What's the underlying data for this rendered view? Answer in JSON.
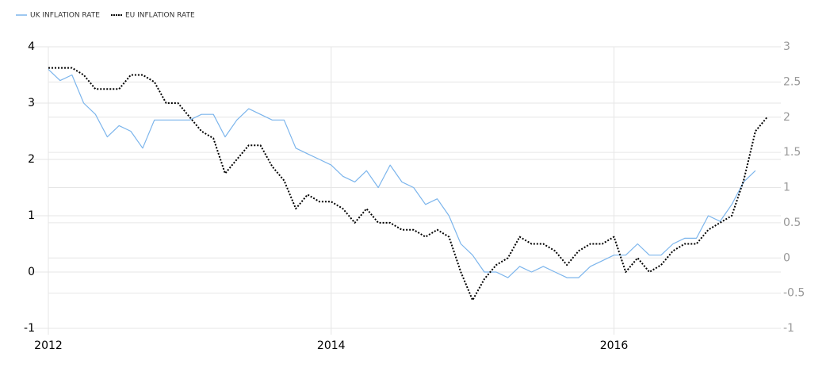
{
  "chart_data": {
    "type": "line",
    "x": [
      2012,
      2012.083,
      2012.167,
      2012.25,
      2012.333,
      2012.417,
      2012.5,
      2012.583,
      2012.667,
      2012.75,
      2012.833,
      2012.917,
      2013,
      2013.083,
      2013.167,
      2013.25,
      2013.333,
      2013.417,
      2013.5,
      2013.583,
      2013.667,
      2013.75,
      2013.833,
      2013.917,
      2014,
      2014.083,
      2014.167,
      2014.25,
      2014.333,
      2014.417,
      2014.5,
      2014.583,
      2014.667,
      2014.75,
      2014.833,
      2014.917,
      2015,
      2015.083,
      2015.167,
      2015.25,
      2015.333,
      2015.417,
      2015.5,
      2015.583,
      2015.667,
      2015.75,
      2015.833,
      2015.917,
      2016,
      2016.083,
      2016.167,
      2016.25,
      2016.333,
      2016.417,
      2016.5,
      2016.583,
      2016.667,
      2016.75,
      2016.833,
      2016.917,
      2017,
      2017.083
    ],
    "series": [
      {
        "name": "UK INFLATION RATE",
        "color": "#7cb5ec",
        "line_style": "solid",
        "axis": "y",
        "values": [
          3.6,
          3.4,
          3.5,
          3.0,
          2.8,
          2.4,
          2.6,
          2.5,
          2.2,
          2.7,
          2.7,
          2.7,
          2.7,
          2.8,
          2.8,
          2.4,
          2.7,
          2.9,
          2.8,
          2.7,
          2.7,
          2.2,
          2.1,
          2.0,
          1.9,
          1.7,
          1.6,
          1.8,
          1.5,
          1.9,
          1.6,
          1.5,
          1.2,
          1.3,
          1.0,
          0.5,
          0.3,
          0.0,
          0.0,
          -0.1,
          0.1,
          0.0,
          0.1,
          0.0,
          -0.1,
          -0.1,
          0.1,
          0.2,
          0.3,
          0.3,
          0.5,
          0.3,
          0.3,
          0.5,
          0.6,
          0.6,
          1.0,
          0.9,
          1.2,
          1.6,
          1.8,
          null
        ]
      },
      {
        "name": "EU INFLATION RATE",
        "color": "#000000",
        "line_style": "dotted",
        "axis": "y2",
        "values": [
          2.7,
          2.7,
          2.7,
          2.6,
          2.4,
          2.4,
          2.4,
          2.6,
          2.6,
          2.5,
          2.2,
          2.2,
          2.0,
          1.8,
          1.7,
          1.2,
          1.4,
          1.6,
          1.6,
          1.3,
          1.1,
          0.7,
          0.9,
          0.8,
          0.8,
          0.7,
          0.5,
          0.7,
          0.5,
          0.5,
          0.4,
          0.4,
          0.3,
          0.4,
          0.3,
          -0.2,
          -0.6,
          -0.3,
          -0.1,
          0.0,
          0.3,
          0.2,
          0.2,
          0.1,
          -0.1,
          0.1,
          0.2,
          0.2,
          0.3,
          -0.2,
          0.0,
          -0.2,
          -0.1,
          0.1,
          0.2,
          0.2,
          0.4,
          0.5,
          0.6,
          1.1,
          1.8,
          2.0
        ]
      }
    ],
    "xlim": [
      2012,
      2017.18
    ],
    "xticks": [
      2012,
      2014,
      2016
    ],
    "ylim": [
      -1,
      4
    ],
    "yticks": [
      -1,
      0,
      1,
      2,
      3,
      4
    ],
    "y2lim": [
      -1,
      3
    ],
    "y2ticks": [
      -1,
      -0.5,
      0,
      0.5,
      1,
      1.5,
      2,
      2.5,
      3
    ],
    "grid": true,
    "legend": "top-left"
  }
}
